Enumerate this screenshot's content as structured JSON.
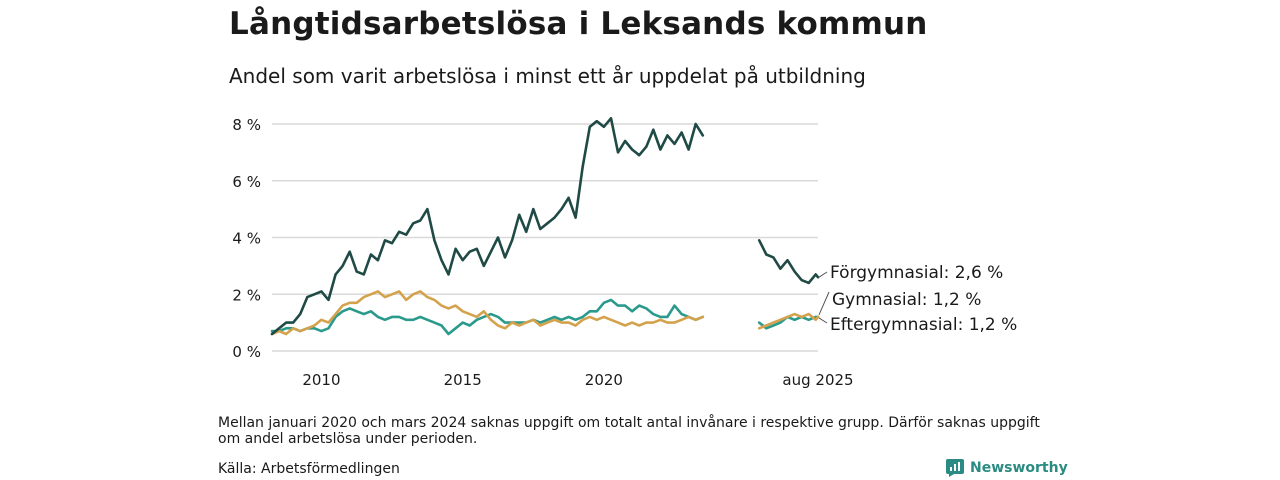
{
  "header": {
    "title": "Långtidsarbetslösa i Leksands kommun",
    "subtitle": "Andel som varit arbetslösa i minst ett år uppdelat på utbildning"
  },
  "footer": {
    "note": "Mellan januari 2020 och mars 2024 saknas uppgift om totalt antal invånare i respektive grupp. Därför saknas uppgift om andel arbetslösa under perioden.",
    "source": "Källa: Arbetsförmedlingen",
    "brand": "Newsworthy"
  },
  "colors": {
    "forgymnasial": "#1f4a45",
    "gymnasial": "#2a9a8c",
    "eftergymnasial": "#d4a24c",
    "grid": "#d9d9d9",
    "brand": "#2a8b82"
  },
  "chart_data": {
    "type": "line",
    "title": "Långtidsarbetslösa i Leksands kommun",
    "subtitle": "Andel som varit arbetslösa i minst ett år uppdelat på utbildning",
    "ylim": [
      0,
      8
    ],
    "y_ticks": [
      0,
      2,
      4,
      6,
      8
    ],
    "y_tick_labels": [
      "0 %",
      "2 %",
      "4 %",
      "6 %",
      "8 %"
    ],
    "x_ticks": [
      2010,
      2015,
      2020
    ],
    "x_tick_labels": [
      "2010",
      "2015",
      "2020"
    ],
    "x_end_label": "aug 2025",
    "grid": true,
    "note": "gap between the two segments of each series",
    "series": [
      {
        "name": "Förgymnasial",
        "end_label": "Förgymnasial: 2,6 %",
        "segments": [
          [
            [
              2008.25,
              0.6
            ],
            [
              2008.5,
              0.8
            ],
            [
              2008.75,
              1.0
            ],
            [
              2009.0,
              1.0
            ],
            [
              2009.25,
              1.3
            ],
            [
              2009.5,
              1.9
            ],
            [
              2009.75,
              2.0
            ],
            [
              2010.0,
              2.1
            ],
            [
              2010.25,
              1.8
            ],
            [
              2010.5,
              2.7
            ],
            [
              2010.75,
              3.0
            ],
            [
              2011.0,
              3.5
            ],
            [
              2011.25,
              2.8
            ],
            [
              2011.5,
              2.7
            ],
            [
              2011.75,
              3.4
            ],
            [
              2012.0,
              3.2
            ],
            [
              2012.25,
              3.9
            ],
            [
              2012.5,
              3.8
            ],
            [
              2012.75,
              4.2
            ],
            [
              2013.0,
              4.1
            ],
            [
              2013.25,
              4.5
            ],
            [
              2013.5,
              4.6
            ],
            [
              2013.75,
              5.0
            ],
            [
              2014.0,
              3.9
            ],
            [
              2014.25,
              3.2
            ],
            [
              2014.5,
              2.7
            ],
            [
              2014.75,
              3.6
            ],
            [
              2015.0,
              3.2
            ],
            [
              2015.25,
              3.5
            ],
            [
              2015.5,
              3.6
            ],
            [
              2015.75,
              3.0
            ],
            [
              2016.0,
              3.5
            ],
            [
              2016.25,
              4.0
            ],
            [
              2016.5,
              3.3
            ],
            [
              2016.75,
              3.9
            ],
            [
              2017.0,
              4.8
            ],
            [
              2017.25,
              4.2
            ],
            [
              2017.5,
              5.0
            ],
            [
              2017.75,
              4.3
            ],
            [
              2018.0,
              4.5
            ],
            [
              2018.25,
              4.7
            ],
            [
              2018.5,
              5.0
            ],
            [
              2018.75,
              5.4
            ],
            [
              2019.0,
              4.7
            ],
            [
              2019.25,
              6.5
            ],
            [
              2019.5,
              7.9
            ],
            [
              2019.75,
              8.1
            ],
            [
              2020.0,
              7.9
            ],
            [
              2020.25,
              8.2
            ],
            [
              2020.5,
              7.0
            ],
            [
              2020.75,
              7.4
            ],
            [
              2021.0,
              7.1
            ],
            [
              2021.25,
              6.9
            ],
            [
              2021.5,
              7.2
            ],
            [
              2021.75,
              7.8
            ],
            [
              2022.0,
              7.1
            ],
            [
              2022.25,
              7.6
            ],
            [
              2022.5,
              7.3
            ],
            [
              2022.75,
              7.7
            ],
            [
              2023.0,
              7.1
            ],
            [
              2023.25,
              8.0
            ],
            [
              2023.5,
              7.6
            ]
          ],
          [
            [
              2025.5,
              3.9
            ],
            [
              2025.75,
              3.4
            ],
            [
              2026.0,
              3.3
            ],
            [
              2026.25,
              2.9
            ],
            [
              2026.5,
              3.2
            ],
            [
              2026.75,
              2.8
            ],
            [
              2027.0,
              2.5
            ],
            [
              2027.25,
              2.4
            ],
            [
              2027.5,
              2.7
            ],
            [
              2027.58,
              2.6
            ]
          ]
        ]
      },
      {
        "name": "Gymnasial",
        "end_label": "Gymnasial: 1,2 %",
        "segments": [
          [
            [
              2008.25,
              0.7
            ],
            [
              2008.5,
              0.7
            ],
            [
              2008.75,
              0.8
            ],
            [
              2009.0,
              0.8
            ],
            [
              2009.25,
              0.7
            ],
            [
              2009.5,
              0.8
            ],
            [
              2009.75,
              0.8
            ],
            [
              2010.0,
              0.7
            ],
            [
              2010.25,
              0.8
            ],
            [
              2010.5,
              1.2
            ],
            [
              2010.75,
              1.4
            ],
            [
              2011.0,
              1.5
            ],
            [
              2011.25,
              1.4
            ],
            [
              2011.5,
              1.3
            ],
            [
              2011.75,
              1.4
            ],
            [
              2012.0,
              1.2
            ],
            [
              2012.25,
              1.1
            ],
            [
              2012.5,
              1.2
            ],
            [
              2012.75,
              1.2
            ],
            [
              2013.0,
              1.1
            ],
            [
              2013.25,
              1.1
            ],
            [
              2013.5,
              1.2
            ],
            [
              2013.75,
              1.1
            ],
            [
              2014.0,
              1.0
            ],
            [
              2014.25,
              0.9
            ],
            [
              2014.5,
              0.6
            ],
            [
              2014.75,
              0.8
            ],
            [
              2015.0,
              1.0
            ],
            [
              2015.25,
              0.9
            ],
            [
              2015.5,
              1.1
            ],
            [
              2015.75,
              1.2
            ],
            [
              2016.0,
              1.3
            ],
            [
              2016.25,
              1.2
            ],
            [
              2016.5,
              1.0
            ],
            [
              2016.75,
              1.0
            ],
            [
              2017.0,
              1.0
            ],
            [
              2017.25,
              1.0
            ],
            [
              2017.5,
              1.1
            ],
            [
              2017.75,
              1.0
            ],
            [
              2018.0,
              1.1
            ],
            [
              2018.25,
              1.2
            ],
            [
              2018.5,
              1.1
            ],
            [
              2018.75,
              1.2
            ],
            [
              2019.0,
              1.1
            ],
            [
              2019.25,
              1.2
            ],
            [
              2019.5,
              1.4
            ],
            [
              2019.75,
              1.4
            ],
            [
              2020.0,
              1.7
            ],
            [
              2020.25,
              1.8
            ],
            [
              2020.5,
              1.6
            ],
            [
              2020.75,
              1.6
            ],
            [
              2021.0,
              1.4
            ],
            [
              2021.25,
              1.6
            ],
            [
              2021.5,
              1.5
            ],
            [
              2021.75,
              1.3
            ],
            [
              2022.0,
              1.2
            ],
            [
              2022.25,
              1.2
            ],
            [
              2022.5,
              1.6
            ],
            [
              2022.75,
              1.3
            ],
            [
              2023.0,
              1.2
            ],
            [
              2023.25,
              1.1
            ],
            [
              2023.5,
              1.2
            ]
          ],
          [
            [
              2025.5,
              1.0
            ],
            [
              2025.75,
              0.8
            ],
            [
              2026.0,
              0.9
            ],
            [
              2026.25,
              1.0
            ],
            [
              2026.5,
              1.2
            ],
            [
              2026.75,
              1.1
            ],
            [
              2027.0,
              1.2
            ],
            [
              2027.25,
              1.1
            ],
            [
              2027.5,
              1.2
            ],
            [
              2027.58,
              1.2
            ]
          ]
        ]
      },
      {
        "name": "Eftergymnasial",
        "end_label": "Eftergymnasial: 1,2 %",
        "segments": [
          [
            [
              2008.25,
              0.6
            ],
            [
              2008.5,
              0.7
            ],
            [
              2008.75,
              0.6
            ],
            [
              2009.0,
              0.8
            ],
            [
              2009.25,
              0.7
            ],
            [
              2009.5,
              0.8
            ],
            [
              2009.75,
              0.9
            ],
            [
              2010.0,
              1.1
            ],
            [
              2010.25,
              1.0
            ],
            [
              2010.5,
              1.3
            ],
            [
              2010.75,
              1.6
            ],
            [
              2011.0,
              1.7
            ],
            [
              2011.25,
              1.7
            ],
            [
              2011.5,
              1.9
            ],
            [
              2011.75,
              2.0
            ],
            [
              2012.0,
              2.1
            ],
            [
              2012.25,
              1.9
            ],
            [
              2012.5,
              2.0
            ],
            [
              2012.75,
              2.1
            ],
            [
              2013.0,
              1.8
            ],
            [
              2013.25,
              2.0
            ],
            [
              2013.5,
              2.1
            ],
            [
              2013.75,
              1.9
            ],
            [
              2014.0,
              1.8
            ],
            [
              2014.25,
              1.6
            ],
            [
              2014.5,
              1.5
            ],
            [
              2014.75,
              1.6
            ],
            [
              2015.0,
              1.4
            ],
            [
              2015.25,
              1.3
            ],
            [
              2015.5,
              1.2
            ],
            [
              2015.75,
              1.4
            ],
            [
              2016.0,
              1.1
            ],
            [
              2016.25,
              0.9
            ],
            [
              2016.5,
              0.8
            ],
            [
              2016.75,
              1.0
            ],
            [
              2017.0,
              0.9
            ],
            [
              2017.25,
              1.0
            ],
            [
              2017.5,
              1.1
            ],
            [
              2017.75,
              0.9
            ],
            [
              2018.0,
              1.0
            ],
            [
              2018.25,
              1.1
            ],
            [
              2018.5,
              1.0
            ],
            [
              2018.75,
              1.0
            ],
            [
              2019.0,
              0.9
            ],
            [
              2019.25,
              1.1
            ],
            [
              2019.5,
              1.2
            ],
            [
              2019.75,
              1.1
            ],
            [
              2020.0,
              1.2
            ],
            [
              2020.25,
              1.1
            ],
            [
              2020.5,
              1.0
            ],
            [
              2020.75,
              0.9
            ],
            [
              2021.0,
              1.0
            ],
            [
              2021.25,
              0.9
            ],
            [
              2021.5,
              1.0
            ],
            [
              2021.75,
              1.0
            ],
            [
              2022.0,
              1.1
            ],
            [
              2022.25,
              1.0
            ],
            [
              2022.5,
              1.0
            ],
            [
              2022.75,
              1.1
            ],
            [
              2023.0,
              1.2
            ],
            [
              2023.25,
              1.1
            ],
            [
              2023.5,
              1.2
            ]
          ],
          [
            [
              2025.5,
              0.8
            ],
            [
              2025.75,
              0.9
            ],
            [
              2026.0,
              1.0
            ],
            [
              2026.25,
              1.1
            ],
            [
              2026.5,
              1.2
            ],
            [
              2026.75,
              1.3
            ],
            [
              2027.0,
              1.2
            ],
            [
              2027.25,
              1.3
            ],
            [
              2027.5,
              1.1
            ],
            [
              2027.58,
              1.2
            ]
          ]
        ]
      }
    ]
  }
}
